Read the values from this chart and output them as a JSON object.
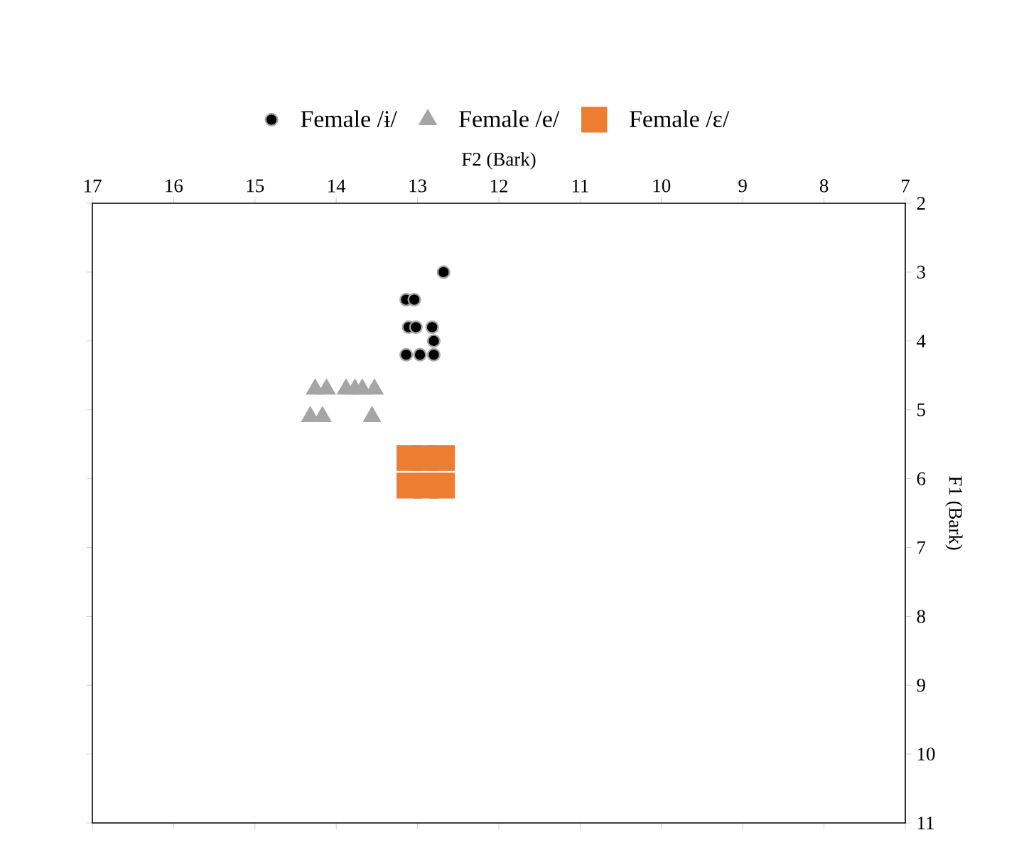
{
  "chart_data": {
    "type": "scatter",
    "xlabel": "F2 (Bark)",
    "ylabel": "F1 (Bark)",
    "xlim": [
      17,
      7
    ],
    "ylim": [
      11,
      2
    ],
    "xticks": [
      17,
      16,
      15,
      14,
      13,
      12,
      11,
      10,
      9,
      8,
      7
    ],
    "yticks": [
      2,
      3,
      4,
      5,
      6,
      7,
      8,
      9,
      10,
      11
    ],
    "legend": "top",
    "grid": false,
    "series": [
      {
        "name": "Female /ɨ/",
        "color": "#000000",
        "marker": "circle",
        "x": [
          12.68,
          13.14,
          13.04,
          13.11,
          13.02,
          12.82,
          12.8,
          13.14,
          12.97,
          12.8
        ],
        "values": [
          3.0,
          3.4,
          3.4,
          3.8,
          3.8,
          3.8,
          4.0,
          4.2,
          4.2,
          4.2
        ]
      },
      {
        "name": "Female /e/",
        "color": "#a5a5a5",
        "marker": "triangle",
        "x": [
          14.26,
          14.12,
          13.88,
          13.77,
          13.68,
          13.53,
          14.32,
          14.17,
          13.56
        ],
        "values": [
          4.7,
          4.7,
          4.7,
          4.7,
          4.7,
          4.7,
          5.1,
          5.1,
          5.1
        ]
      },
      {
        "name": "Female /ɛ/",
        "color": "#ed7d31",
        "marker": "square",
        "x": [
          13.1,
          12.9,
          12.7,
          13.1,
          12.9,
          12.7
        ],
        "values": [
          5.7,
          5.7,
          5.7,
          6.1,
          6.1,
          6.1
        ]
      }
    ]
  }
}
